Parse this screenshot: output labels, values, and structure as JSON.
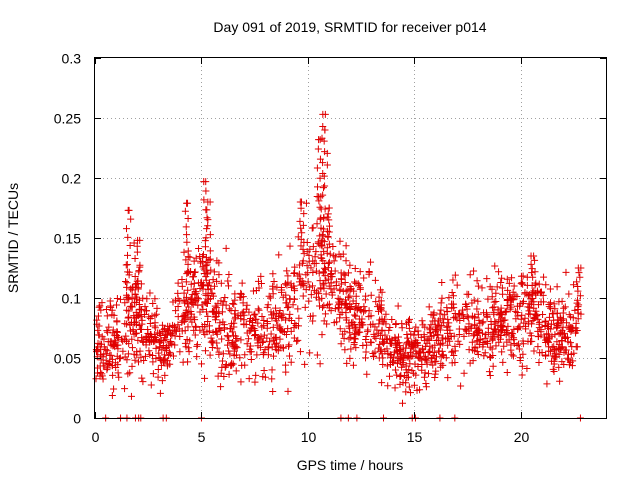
{
  "chart_data": {
    "type": "scatter",
    "title": "Day 091 of 2019, SRMTID for receiver p014",
    "xlabel": "GPS time / hours",
    "ylabel": "SRMTID / TECUs",
    "xlim": [
      0,
      24
    ],
    "ylim": [
      0,
      0.3
    ],
    "x_ticks": [
      0,
      5,
      10,
      15,
      20
    ],
    "x_tick_labels": [
      "0",
      "5",
      "10",
      "15",
      "20"
    ],
    "y_ticks": [
      0,
      0.05,
      0.1,
      0.15,
      0.2,
      0.25,
      0.3
    ],
    "y_tick_labels": [
      "0",
      "0.05",
      "0.1",
      "0.15",
      "0.2",
      "0.25",
      "0.3"
    ],
    "grid": true,
    "marker": "plus",
    "color": "#e00000",
    "series": [
      {
        "name": "SRMTID",
        "trend": [
          [
            0.0,
            0.07,
            0.018
          ],
          [
            0.5,
            0.06,
            0.02
          ],
          [
            1.0,
            0.06,
            0.018
          ],
          [
            1.5,
            0.075,
            0.025
          ],
          [
            2.0,
            0.085,
            0.025
          ],
          [
            2.5,
            0.065,
            0.015
          ],
          [
            3.0,
            0.058,
            0.015
          ],
          [
            3.5,
            0.06,
            0.015
          ],
          [
            4.0,
            0.085,
            0.02
          ],
          [
            4.5,
            0.1,
            0.022
          ],
          [
            5.0,
            0.1,
            0.025
          ],
          [
            5.5,
            0.09,
            0.025
          ],
          [
            6.0,
            0.075,
            0.025
          ],
          [
            6.5,
            0.07,
            0.02
          ],
          [
            7.0,
            0.075,
            0.02
          ],
          [
            7.5,
            0.07,
            0.02
          ],
          [
            8.0,
            0.075,
            0.022
          ],
          [
            8.5,
            0.08,
            0.025
          ],
          [
            9.0,
            0.085,
            0.025
          ],
          [
            9.5,
            0.105,
            0.025
          ],
          [
            10.0,
            0.125,
            0.03
          ],
          [
            10.5,
            0.13,
            0.04
          ],
          [
            11.0,
            0.11,
            0.025
          ],
          [
            11.5,
            0.095,
            0.02
          ],
          [
            12.0,
            0.09,
            0.02
          ],
          [
            12.5,
            0.085,
            0.02
          ],
          [
            13.0,
            0.08,
            0.02
          ],
          [
            13.5,
            0.07,
            0.018
          ],
          [
            14.0,
            0.058,
            0.015
          ],
          [
            14.5,
            0.05,
            0.015
          ],
          [
            15.0,
            0.055,
            0.015
          ],
          [
            15.5,
            0.06,
            0.015
          ],
          [
            16.0,
            0.065,
            0.018
          ],
          [
            16.5,
            0.07,
            0.02
          ],
          [
            17.0,
            0.075,
            0.02
          ],
          [
            17.5,
            0.08,
            0.02
          ],
          [
            18.0,
            0.078,
            0.02
          ],
          [
            18.5,
            0.075,
            0.02
          ],
          [
            19.0,
            0.08,
            0.02
          ],
          [
            19.5,
            0.085,
            0.02
          ],
          [
            20.0,
            0.085,
            0.02
          ],
          [
            20.5,
            0.09,
            0.02
          ],
          [
            21.0,
            0.08,
            0.02
          ],
          [
            21.5,
            0.065,
            0.018
          ],
          [
            22.0,
            0.065,
            0.018
          ],
          [
            22.5,
            0.075,
            0.02
          ]
        ],
        "x_range": [
          0.0,
          22.7
        ],
        "point_count": 1800,
        "peaks": [
          [
            1.6,
            0.173
          ],
          [
            2.0,
            0.148
          ],
          [
            4.3,
            0.179
          ],
          [
            5.2,
            0.197
          ],
          [
            5.3,
            0.18
          ],
          [
            9.7,
            0.18
          ],
          [
            10.5,
            0.232
          ],
          [
            10.7,
            0.253
          ],
          [
            10.8,
            0.24
          ],
          [
            11.0,
            0.175
          ],
          [
            20.6,
            0.135
          ],
          [
            22.7,
            0.125
          ]
        ],
        "zeros": [
          0.5,
          1.2,
          1.5,
          1.9,
          2.05,
          2.15,
          3.2,
          3.35,
          5.0,
          11.55,
          11.9,
          12.3,
          13.55,
          14.9,
          15.05,
          16.2,
          16.9,
          22.8
        ]
      }
    ]
  }
}
